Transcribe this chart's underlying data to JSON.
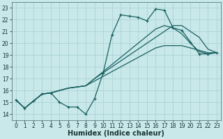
{
  "xlabel": "Humidex (Indice chaleur)",
  "xlim": [
    -0.5,
    23.5
  ],
  "ylim": [
    13.5,
    23.5
  ],
  "yticks": [
    14,
    15,
    16,
    17,
    18,
    19,
    20,
    21,
    22,
    23
  ],
  "xticks": [
    0,
    1,
    2,
    3,
    4,
    5,
    6,
    7,
    8,
    9,
    10,
    11,
    12,
    13,
    14,
    15,
    16,
    17,
    18,
    19,
    20,
    21,
    22,
    23
  ],
  "bg_color": "#c8e8ea",
  "grid_color": "#a8cfd2",
  "line_color": "#1a6060",
  "line1": [
    15.2,
    14.5,
    15.1,
    15.7,
    15.8,
    15.0,
    14.6,
    14.6,
    14.0,
    15.3,
    17.5,
    20.7,
    22.4,
    22.3,
    22.2,
    21.9,
    22.9,
    22.8,
    21.3,
    21.1,
    20.1,
    19.1,
    19.1,
    19.2
  ],
  "line2": [
    15.2,
    14.5,
    15.1,
    15.7,
    15.8,
    16.0,
    16.2,
    16.3,
    16.4,
    17.0,
    17.6,
    18.2,
    18.8,
    19.4,
    20.0,
    20.6,
    21.2,
    21.5,
    21.3,
    20.8,
    20.0,
    19.3,
    19.1,
    19.2
  ],
  "line3": [
    15.2,
    14.5,
    15.1,
    15.7,
    15.8,
    16.0,
    16.2,
    16.3,
    16.4,
    17.0,
    17.5,
    18.0,
    18.5,
    19.0,
    19.5,
    20.0,
    20.5,
    21.0,
    21.5,
    21.5,
    21.0,
    20.5,
    19.5,
    19.2
  ],
  "line4": [
    15.2,
    14.5,
    15.1,
    15.7,
    15.8,
    16.0,
    16.2,
    16.3,
    16.4,
    16.8,
    17.2,
    17.6,
    18.0,
    18.4,
    18.8,
    19.2,
    19.6,
    19.8,
    19.8,
    19.8,
    19.6,
    19.4,
    19.2,
    19.2
  ],
  "tick_fontsize": 5.5,
  "xlabel_fontsize": 7.0,
  "linewidth": 0.9,
  "marker_size": 3.2
}
